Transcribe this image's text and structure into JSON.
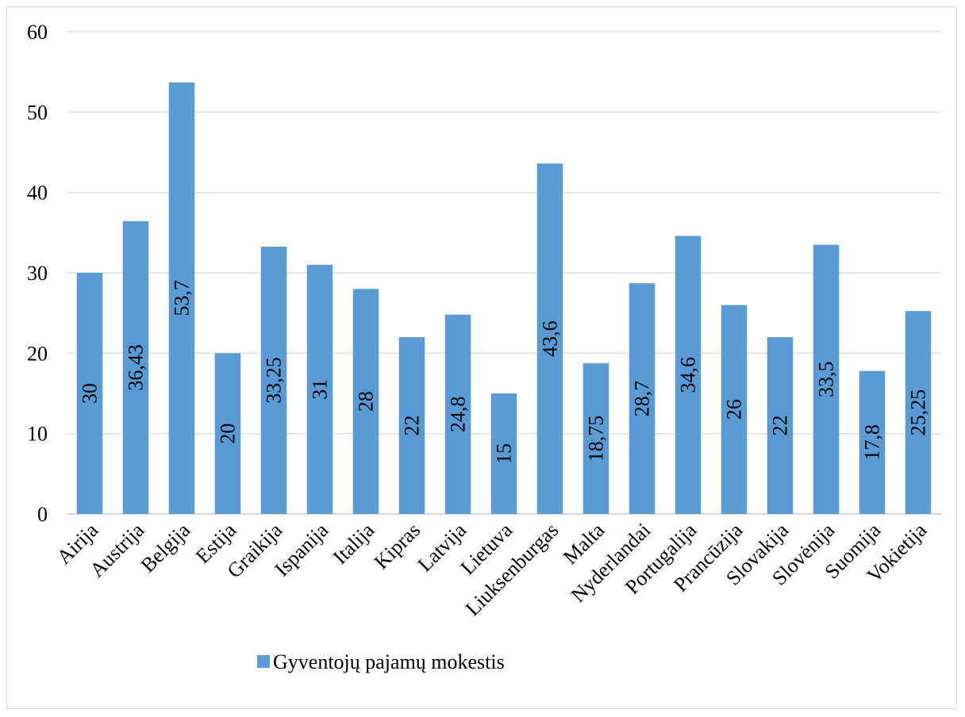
{
  "chart_data": {
    "type": "bar",
    "orientation": "vertical",
    "title": "",
    "xlabel": "",
    "ylabel": "",
    "categories": [
      "Airija",
      "Austrija",
      "Belgija",
      "Estija",
      "Graikija",
      "Ispanija",
      "Italija",
      "Kipras",
      "Latvija",
      "Lietuva",
      "Liuksenburgas",
      "Malta",
      "Nyderlandai",
      "Portugalija",
      "Prancūzija",
      "Slovakija",
      "Slovėnija",
      "Suomija",
      "Vokietija"
    ],
    "series": [
      {
        "name": "Gyventojų pajamų mokestis",
        "color": "#5b9bd5",
        "values": [
          30,
          36.43,
          53.7,
          20,
          33.25,
          31,
          28,
          22,
          24.8,
          15,
          43.6,
          18.75,
          28.7,
          34.6,
          26,
          22,
          33.5,
          17.8,
          25.25
        ],
        "data_labels": [
          "30",
          "36,43",
          "53,7",
          "20",
          "33,25",
          "31",
          "28",
          "22",
          "24,8",
          "15",
          "43,6",
          "18,75",
          "28,7",
          "34,6",
          "26",
          "22",
          "33,5",
          "17,8",
          "25,25"
        ]
      }
    ],
    "ylim": [
      0,
      60
    ],
    "yticks": [
      0,
      10,
      20,
      30,
      40,
      50,
      60
    ],
    "grid": true,
    "legend_position": "bottom",
    "gridline_color": "#d9d9d9"
  }
}
